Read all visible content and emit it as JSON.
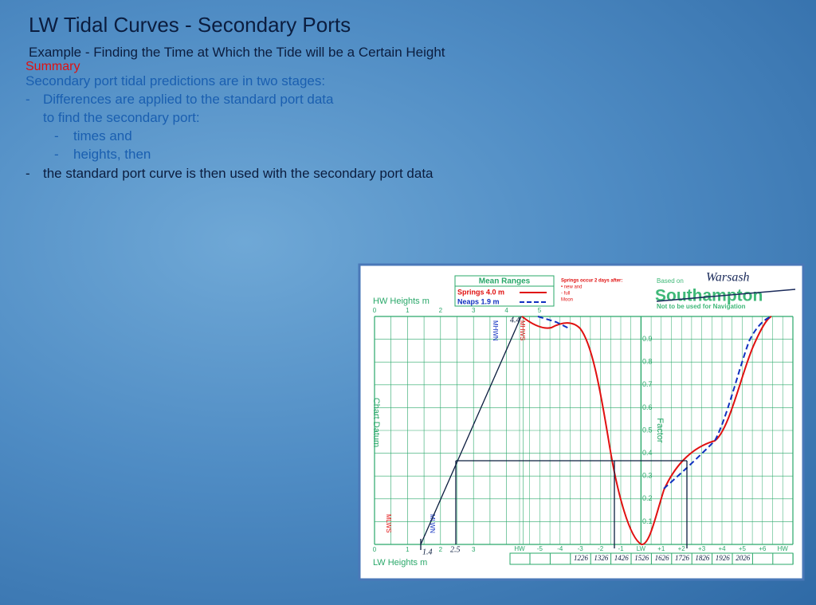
{
  "header": {
    "title": "LW Tidal Curves - Secondary Ports",
    "subtitle": "Example - Finding the Time at Which the Tide will be a Certain Height"
  },
  "summary": {
    "heading": "Summary",
    "items": [
      {
        "text": "Secondary port tidal predictions are in two stages:"
      },
      {
        "bullet": "-",
        "text": "Differences are applied to the standard port data"
      },
      {
        "text": "to find the secondary port:"
      },
      {
        "bullet": "-",
        "text": "times and"
      },
      {
        "bullet": "-",
        "text": "heights, then"
      },
      {
        "bullet": "-",
        "text": "the standard port curve is then used with the secondary port data"
      }
    ]
  },
  "diagram": {
    "legend": {
      "title": "Mean Ranges",
      "springs": "Springs 4.0 m",
      "neaps": "Neaps   1.9 m"
    },
    "note": [
      "Springs occur 2 days after:",
      "•  new and",
      "-  full",
      "Moon"
    ],
    "based_on": "Based on",
    "port": "Southampton",
    "warning": "Not to be used for Navigation",
    "secondary_port": "Warsash",
    "hw_heights_label": "HW Heights m",
    "hw_heights": [
      "0",
      "1",
      "2",
      "3",
      "4",
      "5"
    ],
    "lw_heights_label": "LW Heights m",
    "lw_heights": [
      "0",
      "1",
      "2",
      "3"
    ],
    "chart_datum": "Chart Datum",
    "factor_label": "Factor",
    "factors": [
      "0.9",
      "0.8",
      "0.7",
      "0.6",
      "0.5",
      "0.4",
      "0.3",
      "0.2",
      "0.1"
    ],
    "marks": {
      "mhwn": "MHWN",
      "mhws": "MHWS",
      "mlws": "MLWS",
      "mlwn": "MLWN"
    },
    "handwritten": {
      "hw_height": "4.4",
      "lw_height": "1.4",
      "target_height": "2.5"
    },
    "time_axis": [
      "HW",
      "-5",
      "-4",
      "-3",
      "-2",
      "-1",
      "LW",
      "+1",
      "+2",
      "+3",
      "+4",
      "+5",
      "+6",
      "HW"
    ],
    "times": [
      "1226",
      "1326",
      "1426",
      "1526",
      "1626",
      "1726",
      "1826",
      "1926",
      "2026"
    ]
  }
}
